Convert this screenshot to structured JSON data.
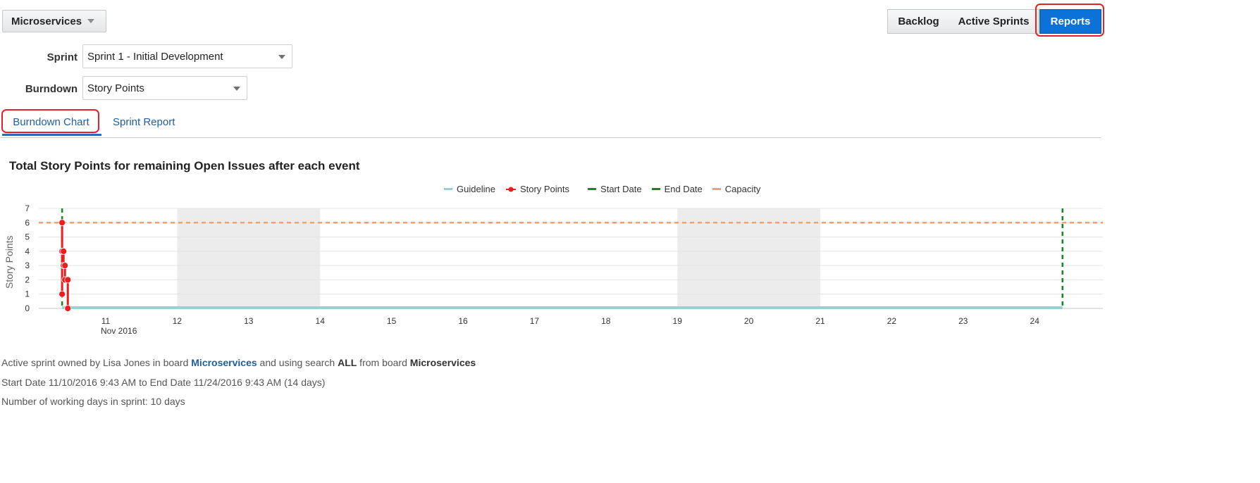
{
  "board": {
    "name": "Microservices"
  },
  "views": {
    "backlog": "Backlog",
    "active_sprints": "Active Sprints",
    "reports": "Reports"
  },
  "filters": {
    "sprint_label": "Sprint",
    "sprint_value": "Sprint 1 - Initial Development",
    "burndown_label": "Burndown",
    "burndown_value": "Story Points"
  },
  "tabs": {
    "burndown_chart": "Burndown Chart",
    "sprint_report": "Sprint Report"
  },
  "chart_data": {
    "type": "line",
    "title": "Total Story Points for remaining Open Issues after each event",
    "ylabel": "Story Points",
    "xlabel": "",
    "ylim": [
      0,
      7
    ],
    "xlim": [
      "2016-11-10",
      "2016-11-25"
    ],
    "x_ticks": [
      "11",
      "12",
      "13",
      "14",
      "15",
      "16",
      "17",
      "18",
      "19",
      "20",
      "21",
      "22",
      "23",
      "24"
    ],
    "x_tick_sublabel": "Nov 2016",
    "y_ticks": [
      "0",
      "1",
      "2",
      "3",
      "4",
      "5",
      "6",
      "7"
    ],
    "grid": true,
    "legend_position": "top",
    "non_working_periods": [
      [
        "2016-11-12",
        "2016-11-14"
      ],
      [
        "2016-11-19",
        "2016-11-21"
      ]
    ],
    "series": [
      {
        "name": "Guideline",
        "color": "#9dcfd2",
        "values": [
          [
            10.39,
            0
          ],
          [
            24.39,
            0
          ]
        ]
      },
      {
        "name": "Story Points",
        "color": "#ee1c1c",
        "values": [
          [
            10.39,
            6
          ],
          [
            10.39,
            1
          ],
          [
            10.39,
            4
          ],
          [
            10.41,
            4
          ],
          [
            10.41,
            3
          ],
          [
            10.43,
            3
          ],
          [
            10.43,
            2
          ],
          [
            10.47,
            2
          ],
          [
            10.47,
            0
          ]
        ]
      },
      {
        "name": "Start Date",
        "color": "#13891f",
        "x": 10.39
      },
      {
        "name": "End Date",
        "color": "#13891f",
        "x": 24.39
      },
      {
        "name": "Capacity",
        "color": "#f0a16d",
        "y": 6
      }
    ]
  },
  "info": {
    "line1_a": "Active sprint owned by Lisa Jones in board ",
    "line1_board": "Microservices",
    "line1_b": " and using search ",
    "line1_search": "ALL",
    "line1_c": " from board ",
    "line1_board2": "Microservices",
    "line2": "Start Date 11/10/2016 9:43 AM to End Date 11/24/2016 9:43 AM (14 days)",
    "line3": "Number of working days in sprint: 10 days"
  }
}
